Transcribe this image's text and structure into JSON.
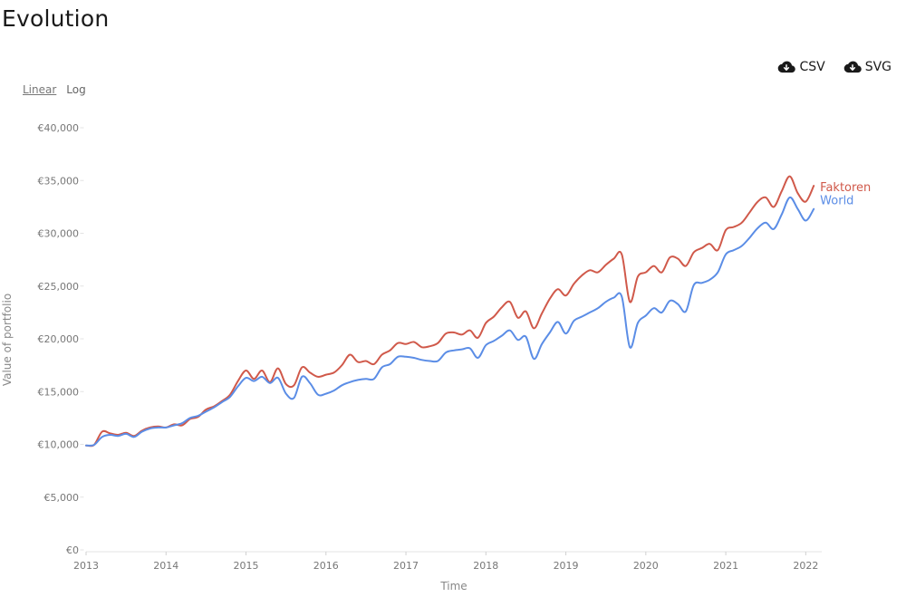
{
  "page": {
    "title": "Evolution"
  },
  "downloads": {
    "csv_label": "CSV",
    "svg_label": "SVG",
    "icon": "cloud-download-icon"
  },
  "scale_toggle": {
    "linear_label": "Linear",
    "log_label": "Log",
    "active": "Linear"
  },
  "colors": {
    "Faktoren": "#d0594a",
    "World": "#5b8de6"
  },
  "chart_data": {
    "type": "line",
    "title": "Evolution",
    "xlabel": "Time",
    "ylabel": "Value of portfolio",
    "xlim": [
      2013.0,
      2022.2
    ],
    "ylim": [
      0,
      40000
    ],
    "yscale": "linear",
    "grid": false,
    "legend": "end-of-line labels",
    "xticks": [
      "2013",
      "2014",
      "2015",
      "2016",
      "2017",
      "2018",
      "2019",
      "2020",
      "2021",
      "2022"
    ],
    "yticks": [
      "€0",
      "€5,000",
      "€10,000",
      "€15,000",
      "€20,000",
      "€25,000",
      "€30,000",
      "€35,000",
      "€40,000"
    ],
    "x": [
      2013.0,
      2013.1,
      2013.2,
      2013.3,
      2013.4,
      2013.5,
      2013.6,
      2013.7,
      2013.8,
      2013.9,
      2014.0,
      2014.1,
      2014.2,
      2014.3,
      2014.4,
      2014.5,
      2014.6,
      2014.7,
      2014.8,
      2014.9,
      2015.0,
      2015.1,
      2015.2,
      2015.3,
      2015.4,
      2015.5,
      2015.6,
      2015.7,
      2015.8,
      2015.9,
      2016.0,
      2016.1,
      2016.2,
      2016.3,
      2016.4,
      2016.5,
      2016.6,
      2016.7,
      2016.8,
      2016.9,
      2017.0,
      2017.1,
      2017.2,
      2017.3,
      2017.4,
      2017.5,
      2017.6,
      2017.7,
      2017.8,
      2017.9,
      2018.0,
      2018.1,
      2018.2,
      2018.3,
      2018.4,
      2018.5,
      2018.6,
      2018.7,
      2018.8,
      2018.9,
      2019.0,
      2019.1,
      2019.2,
      2019.3,
      2019.4,
      2019.5,
      2019.6,
      2019.7,
      2019.8,
      2019.9,
      2020.0,
      2020.1,
      2020.2,
      2020.3,
      2020.4,
      2020.5,
      2020.6,
      2020.7,
      2020.8,
      2020.9,
      2021.0,
      2021.1,
      2021.2,
      2021.3,
      2021.4,
      2021.5,
      2021.6,
      2021.7,
      2021.8,
      2021.9,
      2022.0,
      2022.1
    ],
    "series": [
      {
        "name": "Faktoren",
        "values": [
          9900,
          9950,
          11200,
          11050,
          10900,
          11100,
          10800,
          11300,
          11600,
          11700,
          11600,
          11900,
          11800,
          12400,
          12600,
          13300,
          13600,
          14100,
          14700,
          16000,
          17000,
          16200,
          17000,
          15900,
          17200,
          15700,
          15600,
          17300,
          16800,
          16400,
          16600,
          16800,
          17500,
          18500,
          17800,
          17900,
          17600,
          18500,
          18900,
          19600,
          19500,
          19700,
          19200,
          19300,
          19600,
          20500,
          20600,
          20400,
          20800,
          20100,
          21500,
          22100,
          23000,
          23500,
          22000,
          22600,
          21000,
          22400,
          23800,
          24700,
          24100,
          25200,
          26000,
          26500,
          26300,
          27000,
          27600,
          28000,
          23500,
          25900,
          26300,
          26900,
          26300,
          27700,
          27600,
          26900,
          28200,
          28600,
          29000,
          28400,
          30300,
          30600,
          31000,
          32000,
          33000,
          33400,
          32500,
          34000,
          35400,
          33800,
          33000,
          34500
        ]
      },
      {
        "name": "World",
        "values": [
          9900,
          9950,
          10700,
          10900,
          10800,
          11000,
          10700,
          11200,
          11500,
          11600,
          11600,
          11800,
          12000,
          12500,
          12700,
          13100,
          13500,
          14000,
          14500,
          15500,
          16300,
          16000,
          16400,
          15800,
          16300,
          14800,
          14400,
          16400,
          15800,
          14700,
          14800,
          15100,
          15600,
          15900,
          16100,
          16200,
          16200,
          17300,
          17600,
          18300,
          18300,
          18200,
          18000,
          17900,
          17900,
          18700,
          18900,
          19000,
          19100,
          18200,
          19400,
          19800,
          20300,
          20800,
          19900,
          20200,
          18100,
          19500,
          20600,
          21600,
          20500,
          21700,
          22100,
          22500,
          22900,
          23500,
          23900,
          24000,
          19200,
          21500,
          22200,
          22900,
          22500,
          23600,
          23300,
          22600,
          25100,
          25300,
          25600,
          26300,
          28000,
          28400,
          28800,
          29600,
          30500,
          31000,
          30400,
          31800,
          33400,
          32300,
          31200,
          32300
        ]
      }
    ]
  }
}
